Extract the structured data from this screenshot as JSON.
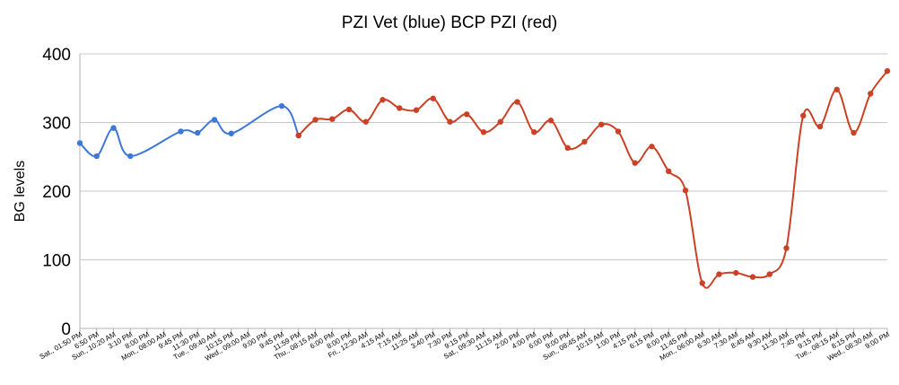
{
  "chart_data": {
    "type": "line",
    "title": "PZI Vet (blue) BCP PZI (red)",
    "xlabel": "",
    "ylabel": "BG levels",
    "ylim": [
      0,
      400
    ],
    "yticks": [
      0,
      100,
      200,
      300,
      400
    ],
    "grid": true,
    "categories": [
      "Sat., 01:50 PM",
      "6:50 PM",
      "Sun., 10:20 AM",
      "3:10 PM",
      "8:00 PM",
      "Mon., 08:00 AM",
      "9:45 PM",
      "11:30 PM",
      "Tue., 09:40 AM",
      "10:15 PM",
      "Wed., 09:00 AM",
      "9:00 PM",
      "9:45 PM",
      "11:59 PM",
      "Thu., 08:15 AM",
      "6:00 PM",
      "8:00 PM",
      "Fri., 12:30 AM",
      "4:15 AM",
      "7:15 AM",
      "11:25 AM",
      "3:40 PM",
      "7:30 PM",
      "9:15 PM",
      "Sat., 09:30 AM",
      "11:15 AM",
      "2:00 PM",
      "4:00 PM",
      "6:00 PM",
      "9:00 PM",
      "Sun., 08:45 AM",
      "10:15 AM",
      "1:00 PM",
      "4:15 PM",
      "6:15 PM",
      "8:00 PM",
      "11:45 PM",
      "Mon., 06:00 AM",
      "6:30 AM",
      "7:30 AM",
      "8:45 AM",
      "9:30 AM",
      "11:30 AM",
      "7:45 PM",
      "9:15 PM",
      "Tue., 08:15 AM",
      "8:15 PM",
      "Wed., 08:30 AM",
      "9:00 PM"
    ],
    "series": [
      {
        "color": "#3c78d8",
        "points": [
          {
            "i": 0,
            "y": 270
          },
          {
            "i": 1,
            "y": 251
          },
          {
            "i": 2,
            "y": 292
          },
          {
            "i": 3,
            "y": 251
          },
          {
            "i": 6,
            "y": 287
          },
          {
            "i": 7,
            "y": 285
          },
          {
            "i": 8,
            "y": 304
          },
          {
            "i": 9,
            "y": 284
          },
          {
            "i": 12,
            "y": 324
          },
          {
            "i": 13,
            "y": 281
          }
        ]
      },
      {
        "color": "#cc4125",
        "points": [
          {
            "i": 13,
            "y": 281
          },
          {
            "i": 14,
            "y": 304
          },
          {
            "i": 15,
            "y": 305
          },
          {
            "i": 16,
            "y": 319
          },
          {
            "i": 17,
            "y": 301
          },
          {
            "i": 18,
            "y": 333
          },
          {
            "i": 19,
            "y": 321
          },
          {
            "i": 20,
            "y": 318
          },
          {
            "i": 21,
            "y": 335
          },
          {
            "i": 22,
            "y": 301
          },
          {
            "i": 23,
            "y": 312
          },
          {
            "i": 24,
            "y": 286
          },
          {
            "i": 25,
            "y": 301
          },
          {
            "i": 26,
            "y": 330
          },
          {
            "i": 27,
            "y": 286
          },
          {
            "i": 28,
            "y": 303
          },
          {
            "i": 29,
            "y": 263
          },
          {
            "i": 30,
            "y": 272
          },
          {
            "i": 31,
            "y": 297
          },
          {
            "i": 32,
            "y": 287
          },
          {
            "i": 33,
            "y": 241
          },
          {
            "i": 34,
            "y": 265
          },
          {
            "i": 35,
            "y": 229
          },
          {
            "i": 36,
            "y": 201
          },
          {
            "i": 37,
            "y": 66
          },
          {
            "i": 38,
            "y": 79
          },
          {
            "i": 39,
            "y": 81
          },
          {
            "i": 40,
            "y": 75
          },
          {
            "i": 41,
            "y": 79
          },
          {
            "i": 42,
            "y": 117
          },
          {
            "i": 43,
            "y": 310
          },
          {
            "i": 44,
            "y": 294
          },
          {
            "i": 45,
            "y": 348
          },
          {
            "i": 46,
            "y": 285
          },
          {
            "i": 47,
            "y": 342
          },
          {
            "i": 48,
            "y": 375
          }
        ]
      }
    ]
  }
}
